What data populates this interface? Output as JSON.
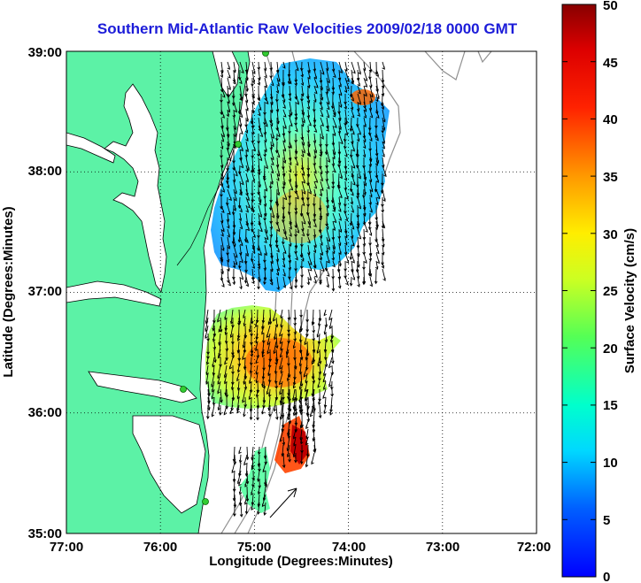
{
  "title": "Southern Mid-Atlantic Raw Velocities 2009/02/18 0000 GMT",
  "xaxis": {
    "label": "Longitude (Degrees:Minutes)",
    "ticks": [
      "77:00",
      "76:00",
      "75:00",
      "74:00",
      "73:00",
      "72:00"
    ],
    "range": [
      -77,
      -72
    ]
  },
  "yaxis": {
    "label": "Latitude (Degrees:Minutes)",
    "ticks": [
      "39:00",
      "38:00",
      "37:00",
      "36:00",
      "35:00"
    ],
    "range": [
      35,
      39
    ]
  },
  "colorbar": {
    "label": "Surface Velocity (cm/s)",
    "ticks": [
      "0",
      "5",
      "10",
      "15",
      "20",
      "25",
      "30",
      "35",
      "40",
      "45",
      "50"
    ],
    "range": [
      0,
      50
    ]
  },
  "colors": {
    "land": "#5cf2a6",
    "water": "#ffffff",
    "title": "#1c1cd9",
    "station": "#33cc33"
  },
  "map_data": {
    "type": "surface current velocity map",
    "grid": true,
    "stations": 5
  }
}
